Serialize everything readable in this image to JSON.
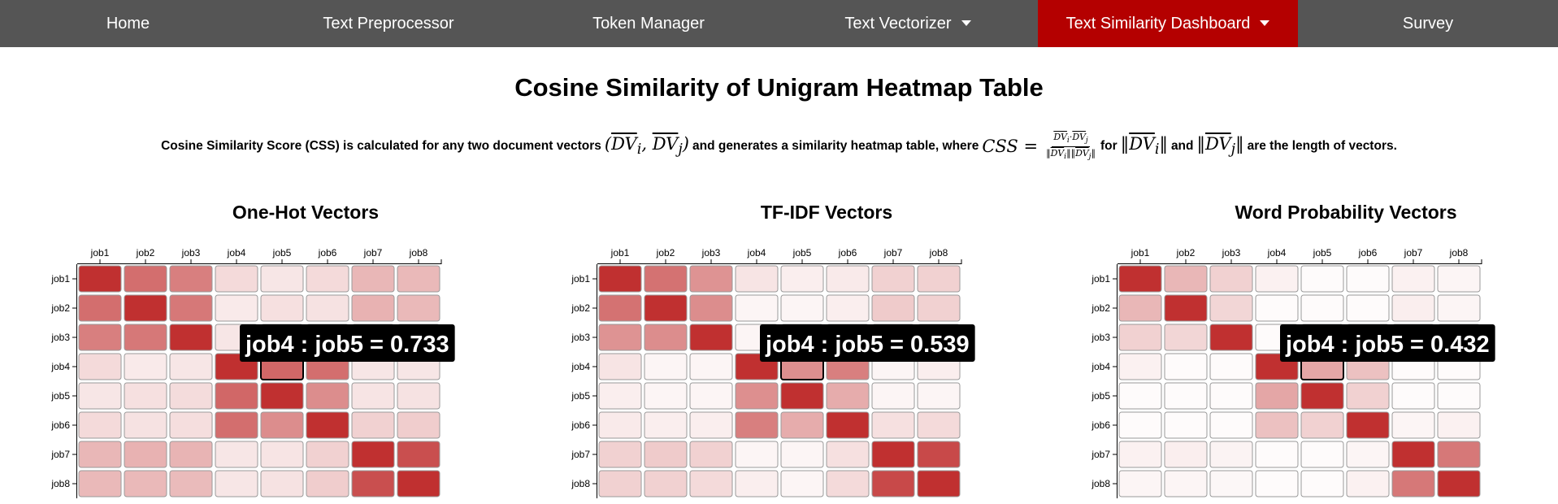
{
  "nav": {
    "items": [
      {
        "label": "Home",
        "dropdown": false,
        "active": false
      },
      {
        "label": "Text Preprocessor",
        "dropdown": false,
        "active": false
      },
      {
        "label": "Token Manager",
        "dropdown": false,
        "active": false
      },
      {
        "label": "Text Vectorizer",
        "dropdown": true,
        "active": false
      },
      {
        "label": "Text Similarity Dashboard",
        "dropdown": true,
        "active": true
      },
      {
        "label": "Survey",
        "dropdown": false,
        "active": false
      }
    ],
    "bg_color": "#555555",
    "active_color": "#b40000"
  },
  "page": {
    "title": "Cosine Similarity of Unigram Heatmap Table",
    "formula": {
      "text_1": "Cosine Similarity Score (CSS) is calculated for any two document vectors",
      "text_2": "and generates a similarity heatmap table, where",
      "text_3": "for",
      "text_4": "and",
      "text_5": "are the length of vectors."
    }
  },
  "chart_data": [
    {
      "type": "heatmap",
      "title": "One-Hot Vectors",
      "x_labels": [
        "job1",
        "job2",
        "job3",
        "job4",
        "job5",
        "job6",
        "job7",
        "job8"
      ],
      "y_labels": [
        "job1",
        "job2",
        "job3",
        "job4",
        "job5",
        "job6",
        "job7",
        "job8"
      ],
      "color_low": "#ffffff",
      "color_high": "#c03030",
      "values": [
        [
          1.0,
          0.7,
          0.62,
          0.18,
          0.12,
          0.18,
          0.35,
          0.34
        ],
        [
          0.7,
          1.0,
          0.65,
          0.1,
          0.15,
          0.14,
          0.37,
          0.34
        ],
        [
          0.62,
          0.65,
          1.0,
          0.12,
          0.17,
          0.16,
          0.36,
          0.33
        ],
        [
          0.18,
          0.1,
          0.12,
          1.0,
          0.733,
          0.7,
          0.12,
          0.12
        ],
        [
          0.12,
          0.15,
          0.17,
          0.733,
          1.0,
          0.55,
          0.13,
          0.14
        ],
        [
          0.18,
          0.14,
          0.16,
          0.7,
          0.55,
          1.0,
          0.22,
          0.24
        ],
        [
          0.35,
          0.37,
          0.36,
          0.12,
          0.13,
          0.22,
          1.0,
          0.85
        ],
        [
          0.34,
          0.34,
          0.33,
          0.12,
          0.14,
          0.24,
          0.85,
          1.0
        ]
      ],
      "highlight": {
        "row": 3,
        "col": 4
      },
      "tooltip": "job4 : job5 = 0.733"
    },
    {
      "type": "heatmap",
      "title": "TF-IDF Vectors",
      "x_labels": [
        "job1",
        "job2",
        "job3",
        "job4",
        "job5",
        "job6",
        "job7",
        "job8"
      ],
      "y_labels": [
        "job1",
        "job2",
        "job3",
        "job4",
        "job5",
        "job6",
        "job7",
        "job8"
      ],
      "color_low": "#ffffff",
      "color_high": "#c03030",
      "values": [
        [
          1.0,
          0.68,
          0.52,
          0.13,
          0.08,
          0.1,
          0.22,
          0.22
        ],
        [
          0.68,
          1.0,
          0.55,
          0.05,
          0.05,
          0.08,
          0.25,
          0.22
        ],
        [
          0.52,
          0.55,
          1.0,
          0.05,
          0.05,
          0.08,
          0.22,
          0.18
        ],
        [
          0.13,
          0.05,
          0.05,
          1.0,
          0.539,
          0.62,
          0.05,
          0.08
        ],
        [
          0.08,
          0.05,
          0.05,
          0.539,
          1.0,
          0.4,
          0.05,
          0.05
        ],
        [
          0.1,
          0.08,
          0.08,
          0.62,
          0.4,
          1.0,
          0.15,
          0.18
        ],
        [
          0.22,
          0.25,
          0.22,
          0.05,
          0.05,
          0.15,
          1.0,
          0.88
        ],
        [
          0.22,
          0.22,
          0.18,
          0.08,
          0.05,
          0.18,
          0.88,
          1.0
        ]
      ],
      "highlight": {
        "row": 3,
        "col": 4
      },
      "tooltip": "job4 : job5 = 0.539"
    },
    {
      "type": "heatmap",
      "title": "Word Probability Vectors",
      "x_labels": [
        "job1",
        "job2",
        "job3",
        "job4",
        "job5",
        "job6",
        "job7",
        "job8"
      ],
      "y_labels": [
        "job1",
        "job2",
        "job3",
        "job4",
        "job5",
        "job6",
        "job7",
        "job8"
      ],
      "color_low": "#ffffff",
      "color_high": "#c03030",
      "values": [
        [
          1.0,
          0.35,
          0.22,
          0.07,
          0.02,
          0.02,
          0.07,
          0.05
        ],
        [
          0.35,
          1.0,
          0.2,
          0.02,
          0.02,
          0.02,
          0.08,
          0.05
        ],
        [
          0.22,
          0.2,
          1.0,
          0.02,
          0.02,
          0.02,
          0.06,
          0.04
        ],
        [
          0.07,
          0.02,
          0.02,
          1.0,
          0.432,
          0.3,
          0.02,
          0.02
        ],
        [
          0.02,
          0.02,
          0.02,
          0.432,
          1.0,
          0.22,
          0.02,
          0.02
        ],
        [
          0.02,
          0.02,
          0.02,
          0.3,
          0.22,
          1.0,
          0.05,
          0.07
        ],
        [
          0.07,
          0.08,
          0.06,
          0.02,
          0.02,
          0.05,
          1.0,
          0.65
        ],
        [
          0.05,
          0.05,
          0.04,
          0.02,
          0.02,
          0.07,
          0.65,
          1.0
        ]
      ],
      "highlight": {
        "row": 3,
        "col": 4
      },
      "tooltip": "job4 : job5 = 0.432"
    }
  ]
}
